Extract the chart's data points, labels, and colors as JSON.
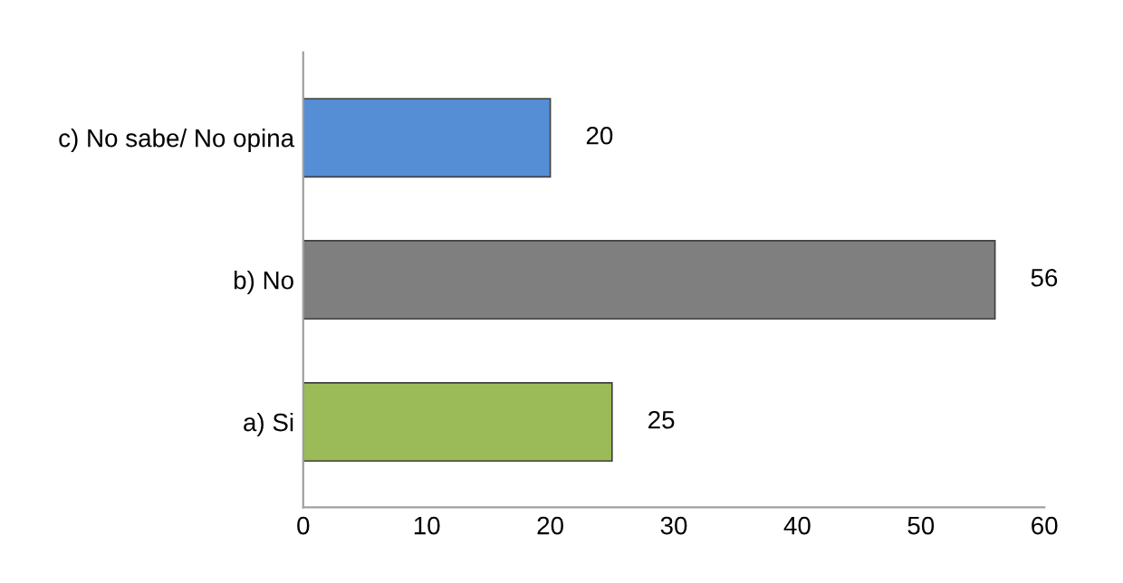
{
  "chart_data": {
    "type": "bar",
    "orientation": "horizontal",
    "categories": [
      "c) No sabe/ No opina",
      "b) No",
      "a) Si"
    ],
    "values": [
      20,
      56,
      25
    ],
    "colors": [
      "#558ed5",
      "#7f7f7f",
      "#9bbb59"
    ],
    "xlim": [
      0,
      60
    ],
    "xticks": [
      0,
      10,
      20,
      30,
      40,
      50,
      60
    ],
    "data_labels": true,
    "grid": false,
    "legend": false
  }
}
